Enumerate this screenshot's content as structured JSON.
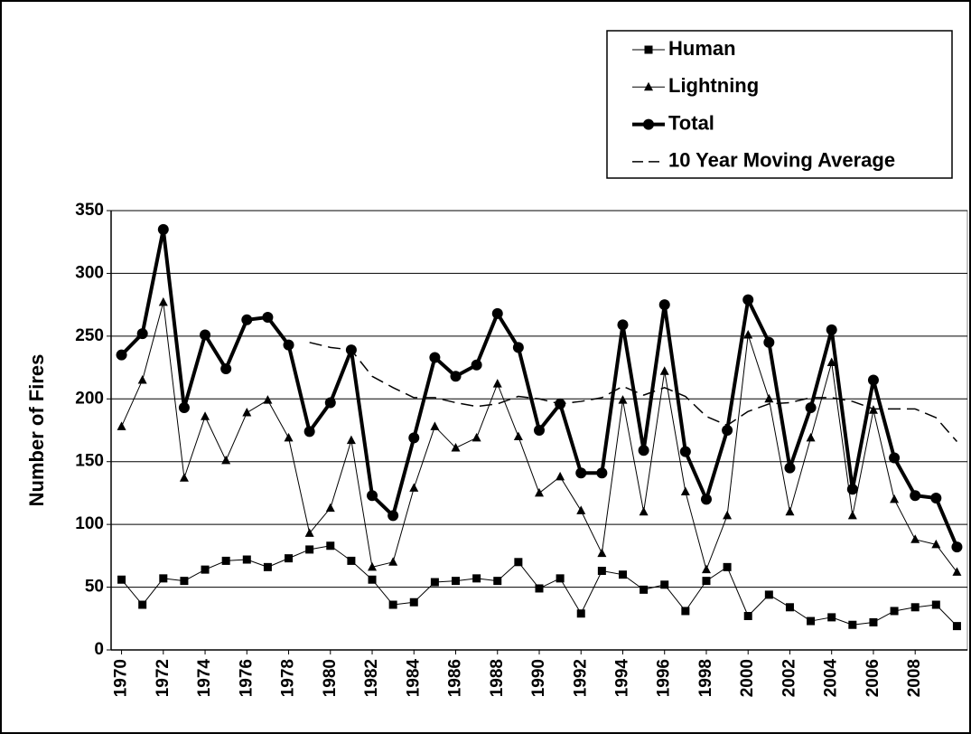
{
  "chart_data": {
    "type": "line",
    "ylabel": "Number of Fires",
    "x": [
      1970,
      1971,
      1972,
      1973,
      1974,
      1975,
      1976,
      1977,
      1978,
      1979,
      1980,
      1981,
      1982,
      1983,
      1984,
      1985,
      1986,
      1987,
      1988,
      1989,
      1990,
      1991,
      1992,
      1993,
      1994,
      1995,
      1996,
      1997,
      1998,
      1999,
      2000,
      2001,
      2002,
      2003,
      2004,
      2005,
      2006,
      2007,
      2008,
      2009,
      2010
    ],
    "xlim": [
      1969.5,
      2010.5
    ],
    "xticks": [
      1970,
      1972,
      1974,
      1976,
      1978,
      1980,
      1982,
      1984,
      1986,
      1988,
      1990,
      1992,
      1994,
      1996,
      1998,
      2000,
      2002,
      2004,
      2006,
      2008
    ],
    "ylim": [
      0,
      350
    ],
    "yticks": [
      0,
      50,
      100,
      150,
      200,
      250,
      300,
      350
    ],
    "grid": true,
    "legend": "upper right",
    "series": [
      {
        "name": "Human",
        "color": "#000000",
        "marker": "square",
        "width": 1,
        "dash": false,
        "values": [
          56,
          36,
          57,
          55,
          64,
          71,
          72,
          66,
          73,
          80,
          83,
          71,
          56,
          36,
          38,
          54,
          55,
          57,
          55,
          70,
          49,
          57,
          29,
          63,
          60,
          48,
          52,
          31,
          55,
          66,
          27,
          44,
          34,
          23,
          26,
          20,
          22,
          31,
          34,
          36,
          19
        ]
      },
      {
        "name": "Lightning",
        "color": "#000000",
        "marker": "triangle",
        "width": 1,
        "dash": false,
        "values": [
          178,
          215,
          277,
          137,
          186,
          151,
          189,
          199,
          169,
          93,
          113,
          167,
          66,
          70,
          129,
          178,
          161,
          169,
          212,
          170,
          125,
          138,
          111,
          77,
          199,
          110,
          222,
          126,
          64,
          107,
          251,
          200,
          110,
          169,
          229,
          107,
          191,
          120,
          88,
          84,
          62
        ]
      },
      {
        "name": "Total",
        "color": "#000000",
        "marker": "circle",
        "width": 4,
        "dash": false,
        "values": [
          235,
          252,
          335,
          193,
          251,
          224,
          263,
          265,
          243,
          174,
          197,
          239,
          123,
          107,
          169,
          233,
          218,
          227,
          268,
          241,
          175,
          196,
          141,
          141,
          259,
          159,
          275,
          158,
          120,
          175,
          279,
          245,
          145,
          193,
          255,
          128,
          215,
          153,
          123,
          121,
          82
        ]
      },
      {
        "name": "10 Year Moving Average",
        "color": "#000000",
        "marker": null,
        "width": 1.5,
        "dash": true,
        "values": [
          null,
          null,
          null,
          null,
          null,
          null,
          null,
          null,
          null,
          245,
          241,
          239,
          218,
          209,
          201,
          201,
          197,
          194,
          196,
          202,
          200,
          196,
          198,
          201,
          210,
          203,
          209,
          202,
          186,
          179,
          190,
          196,
          197,
          201,
          201,
          198,
          192,
          192,
          192,
          185,
          166
        ]
      }
    ]
  }
}
